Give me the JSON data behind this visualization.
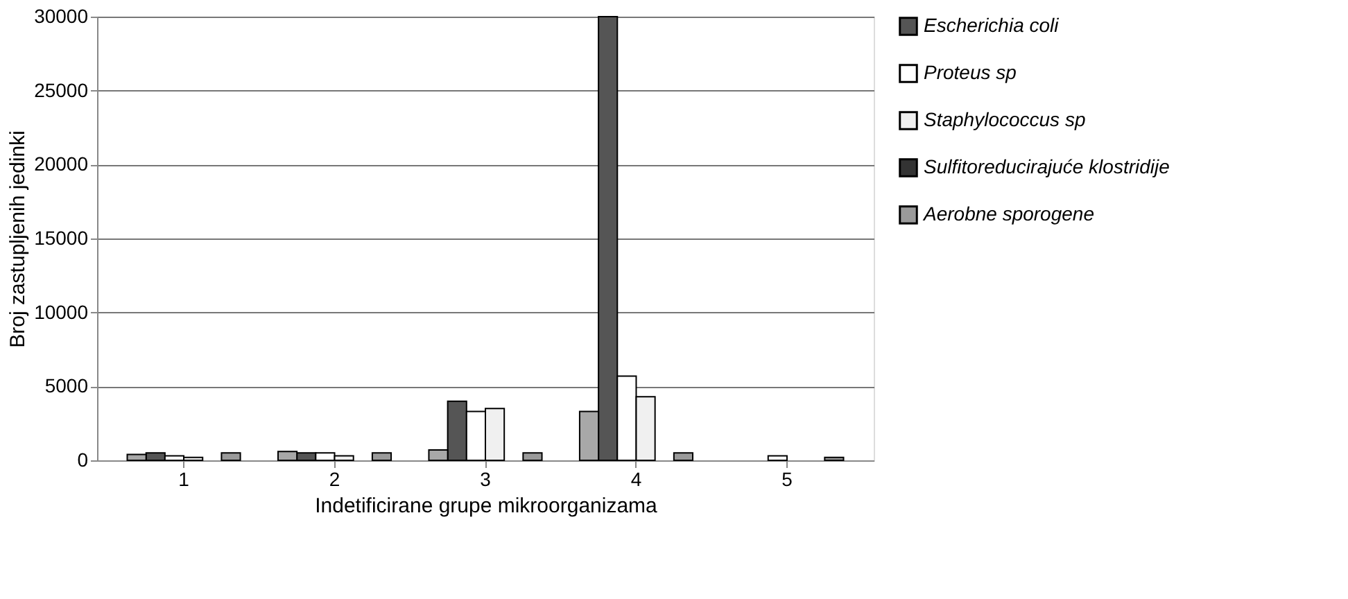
{
  "chart_data": {
    "type": "bar",
    "xlabel": "Indetificirane grupe mikroorganizama",
    "ylabel": "Broj zastupljenih jedinki",
    "categories": [
      "1",
      "2",
      "3",
      "4",
      "5"
    ],
    "series": [
      {
        "color": "#a8a8a8",
        "values": [
          400,
          600,
          700,
          3300,
          null
        ]
      },
      {
        "name": "Escherichia coli",
        "color": "#555555",
        "values": [
          500,
          500,
          4000,
          30000,
          null
        ]
      },
      {
        "name": "Proteus sp",
        "color": "#ffffff",
        "values": [
          300,
          500,
          3300,
          5700,
          300
        ]
      },
      {
        "name": "Staphylococcus sp",
        "color": "#f0f0f0",
        "values": [
          200,
          300,
          3500,
          4300,
          null
        ]
      },
      {
        "name": "Sulfitoreducirajuće klostridije",
        "color": "#333333",
        "values": [
          null,
          null,
          null,
          null,
          null
        ]
      },
      {
        "name": "Aerobne sporogene",
        "color": "#9a9a9a",
        "values": [
          500,
          500,
          500,
          500,
          200
        ]
      }
    ],
    "ylim": [
      0,
      30000
    ],
    "yticks": [
      0,
      5000,
      10000,
      15000,
      20000,
      25000,
      30000
    ],
    "grid": "y",
    "legend": "right"
  }
}
